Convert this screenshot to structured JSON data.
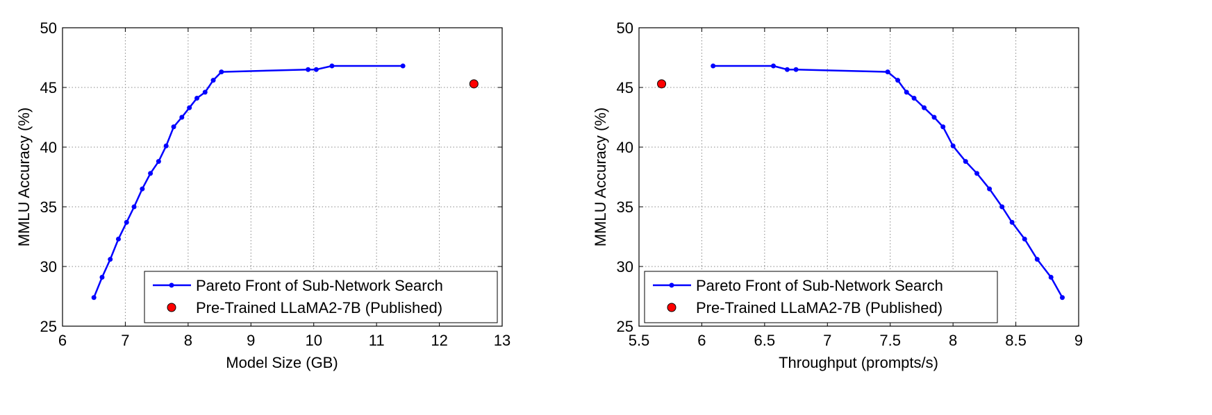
{
  "legend_labels": {
    "pareto": "Pareto Front of Sub-Network Search",
    "baseline": "Pre-Trained LLaMA2-7B (Published)"
  },
  "colors": {
    "pareto_line": "#0000ff",
    "baseline_marker": "#ff0000",
    "grid": "#888888",
    "axis": "#000000"
  },
  "chart_data": [
    {
      "type": "line",
      "xlabel": "Model Size (GB)",
      "ylabel": "MMLU Accuracy (%)",
      "xlim": [
        6,
        13
      ],
      "ylim": [
        25,
        50
      ],
      "xticks": [
        "6",
        "7",
        "8",
        "9",
        "10",
        "11",
        "12",
        "13"
      ],
      "yticks": [
        "25",
        "30",
        "35",
        "40",
        "45",
        "50"
      ],
      "grid": true,
      "legend_position": "bottom-right",
      "series": [
        {
          "name": "Pareto Front of Sub-Network Search",
          "marker": "dot",
          "points": [
            [
              6.5,
              27.4
            ],
            [
              6.63,
              29.1
            ],
            [
              6.76,
              30.6
            ],
            [
              6.89,
              32.3
            ],
            [
              7.02,
              33.7
            ],
            [
              7.14,
              35.0
            ],
            [
              7.27,
              36.5
            ],
            [
              7.4,
              37.8
            ],
            [
              7.53,
              38.8
            ],
            [
              7.65,
              40.1
            ],
            [
              7.77,
              41.7
            ],
            [
              7.9,
              42.5
            ],
            [
              8.02,
              43.3
            ],
            [
              8.14,
              44.1
            ],
            [
              8.27,
              44.6
            ],
            [
              8.4,
              45.6
            ],
            [
              8.53,
              46.3
            ],
            [
              9.91,
              46.5
            ],
            [
              10.04,
              46.5
            ],
            [
              10.29,
              46.8
            ],
            [
              11.42,
              46.8
            ]
          ]
        },
        {
          "name": "Pre-Trained LLaMA2-7B (Published)",
          "marker": "circle",
          "points": [
            [
              12.55,
              45.3
            ]
          ]
        }
      ]
    },
    {
      "type": "line",
      "xlabel": "Throughput (prompts/s)",
      "ylabel": "MMLU Accuracy (%)",
      "xlim": [
        5.5,
        9
      ],
      "ylim": [
        25,
        50
      ],
      "xticks": [
        "5.5",
        "6",
        "6.5",
        "7",
        "7.5",
        "8",
        "8.5",
        "9"
      ],
      "yticks": [
        "25",
        "30",
        "35",
        "40",
        "45",
        "50"
      ],
      "grid": true,
      "legend_position": "bottom-left",
      "series": [
        {
          "name": "Pareto Front of Sub-Network Search",
          "marker": "dot",
          "points": [
            [
              6.09,
              46.8
            ],
            [
              6.57,
              46.8
            ],
            [
              6.68,
              46.5
            ],
            [
              6.75,
              46.5
            ],
            [
              7.48,
              46.3
            ],
            [
              7.56,
              45.6
            ],
            [
              7.63,
              44.6
            ],
            [
              7.69,
              44.1
            ],
            [
              7.77,
              43.3
            ],
            [
              7.85,
              42.5
            ],
            [
              7.92,
              41.7
            ],
            [
              8.0,
              40.1
            ],
            [
              8.1,
              38.8
            ],
            [
              8.19,
              37.8
            ],
            [
              8.29,
              36.5
            ],
            [
              8.39,
              35.0
            ],
            [
              8.47,
              33.7
            ],
            [
              8.57,
              32.3
            ],
            [
              8.67,
              30.6
            ],
            [
              8.78,
              29.1
            ],
            [
              8.87,
              27.4
            ]
          ]
        },
        {
          "name": "Pre-Trained LLaMA2-7B (Published)",
          "marker": "circle",
          "points": [
            [
              5.68,
              45.3
            ]
          ]
        }
      ]
    }
  ]
}
